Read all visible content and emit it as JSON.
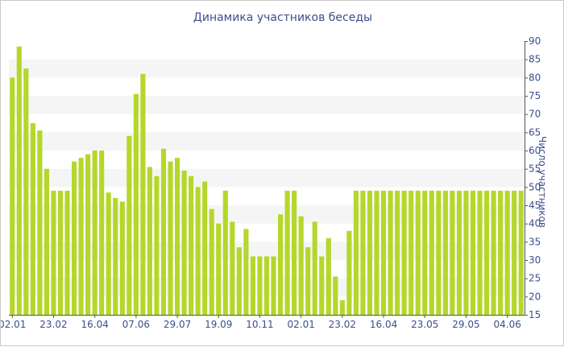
{
  "chart_data": {
    "type": "bar",
    "title": "Динамика участников беседы",
    "xlabel": "",
    "ylabel": "Число участников",
    "ylim": [
      15,
      90
    ],
    "yticks": [
      15,
      20,
      25,
      30,
      35,
      40,
      45,
      50,
      55,
      60,
      65,
      70,
      75,
      80,
      85,
      90
    ],
    "xtick_labels": [
      "02.01",
      "23.02",
      "16.04",
      "07.06",
      "29.07",
      "19.09",
      "10.11",
      "02.01",
      "23.02",
      "16.04",
      "23.05",
      "29.05",
      "04.06"
    ],
    "xtick_indices": [
      0,
      6,
      12,
      18,
      24,
      30,
      36,
      42,
      48,
      54,
      60,
      66,
      72
    ],
    "bar_color": "#b5d72b",
    "grid": true,
    "values": [
      80,
      88.5,
      82.5,
      67.5,
      65.5,
      55,
      49,
      49,
      49,
      57,
      58,
      59,
      60,
      60,
      48.5,
      47,
      46,
      64,
      75.5,
      81,
      55.5,
      53,
      60.5,
      57,
      58,
      54.5,
      53,
      50,
      51.5,
      44,
      40,
      49,
      40.5,
      33.5,
      38.5,
      31,
      31,
      31,
      31,
      42.5,
      49,
      49,
      42,
      33.5,
      40.5,
      31,
      36,
      25.5,
      19,
      38,
      49,
      49,
      49,
      49,
      49,
      49,
      49,
      49,
      49,
      49,
      49,
      49,
      49,
      49,
      49,
      49,
      49,
      49,
      49,
      49,
      49,
      49,
      49,
      49,
      49
    ]
  }
}
